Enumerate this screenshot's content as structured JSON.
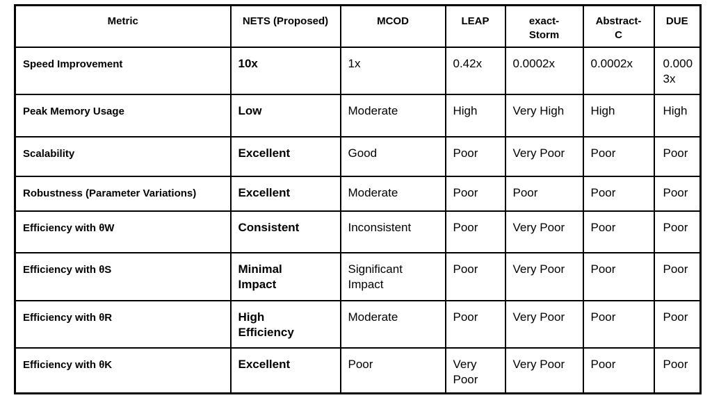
{
  "chart_data": {
    "type": "table",
    "columns": [
      "Metric",
      "NETS (Proposed)",
      "MCOD",
      "LEAP",
      "exact-Storm",
      "Abstract-C",
      "DUE"
    ],
    "rows": [
      [
        "Speed Improvement",
        "10x",
        "1x",
        "0.42x",
        "0.0002x",
        "0.0002x",
        "0.0003x"
      ],
      [
        "Peak Memory Usage",
        "Low",
        "Moderate",
        "High",
        "Very High",
        "High",
        "High"
      ],
      [
        "Scalability",
        "Excellent",
        "Good",
        "Poor",
        "Very Poor",
        "Poor",
        "Poor"
      ],
      [
        "Robustness (Parameter Variations)",
        "Excellent",
        "Moderate",
        "Poor",
        "Poor",
        "Poor",
        "Poor"
      ],
      [
        "Efficiency with θW",
        "Consistent",
        "Inconsistent",
        "Poor",
        "Very Poor",
        "Poor",
        "Poor"
      ],
      [
        "Efficiency with θS",
        "Minimal Impact",
        "Significant Impact",
        "Poor",
        "Very Poor",
        "Poor",
        "Poor"
      ],
      [
        "Efficiency with θR",
        "High Efficiency",
        "Moderate",
        "Poor",
        "Very Poor",
        "Poor",
        "Poor"
      ],
      [
        "Efficiency with θK",
        "Excellent",
        "Poor",
        "Very Poor",
        "Very Poor",
        "Poor",
        "Poor"
      ]
    ],
    "layout": {
      "header_row_bold": true,
      "bold_columns": [
        "Metric",
        "NETS (Proposed)"
      ],
      "grid": true,
      "legend_position": "none"
    }
  },
  "colors": {
    "background": "#ffffff",
    "border": "#000000",
    "text": "#000000"
  }
}
